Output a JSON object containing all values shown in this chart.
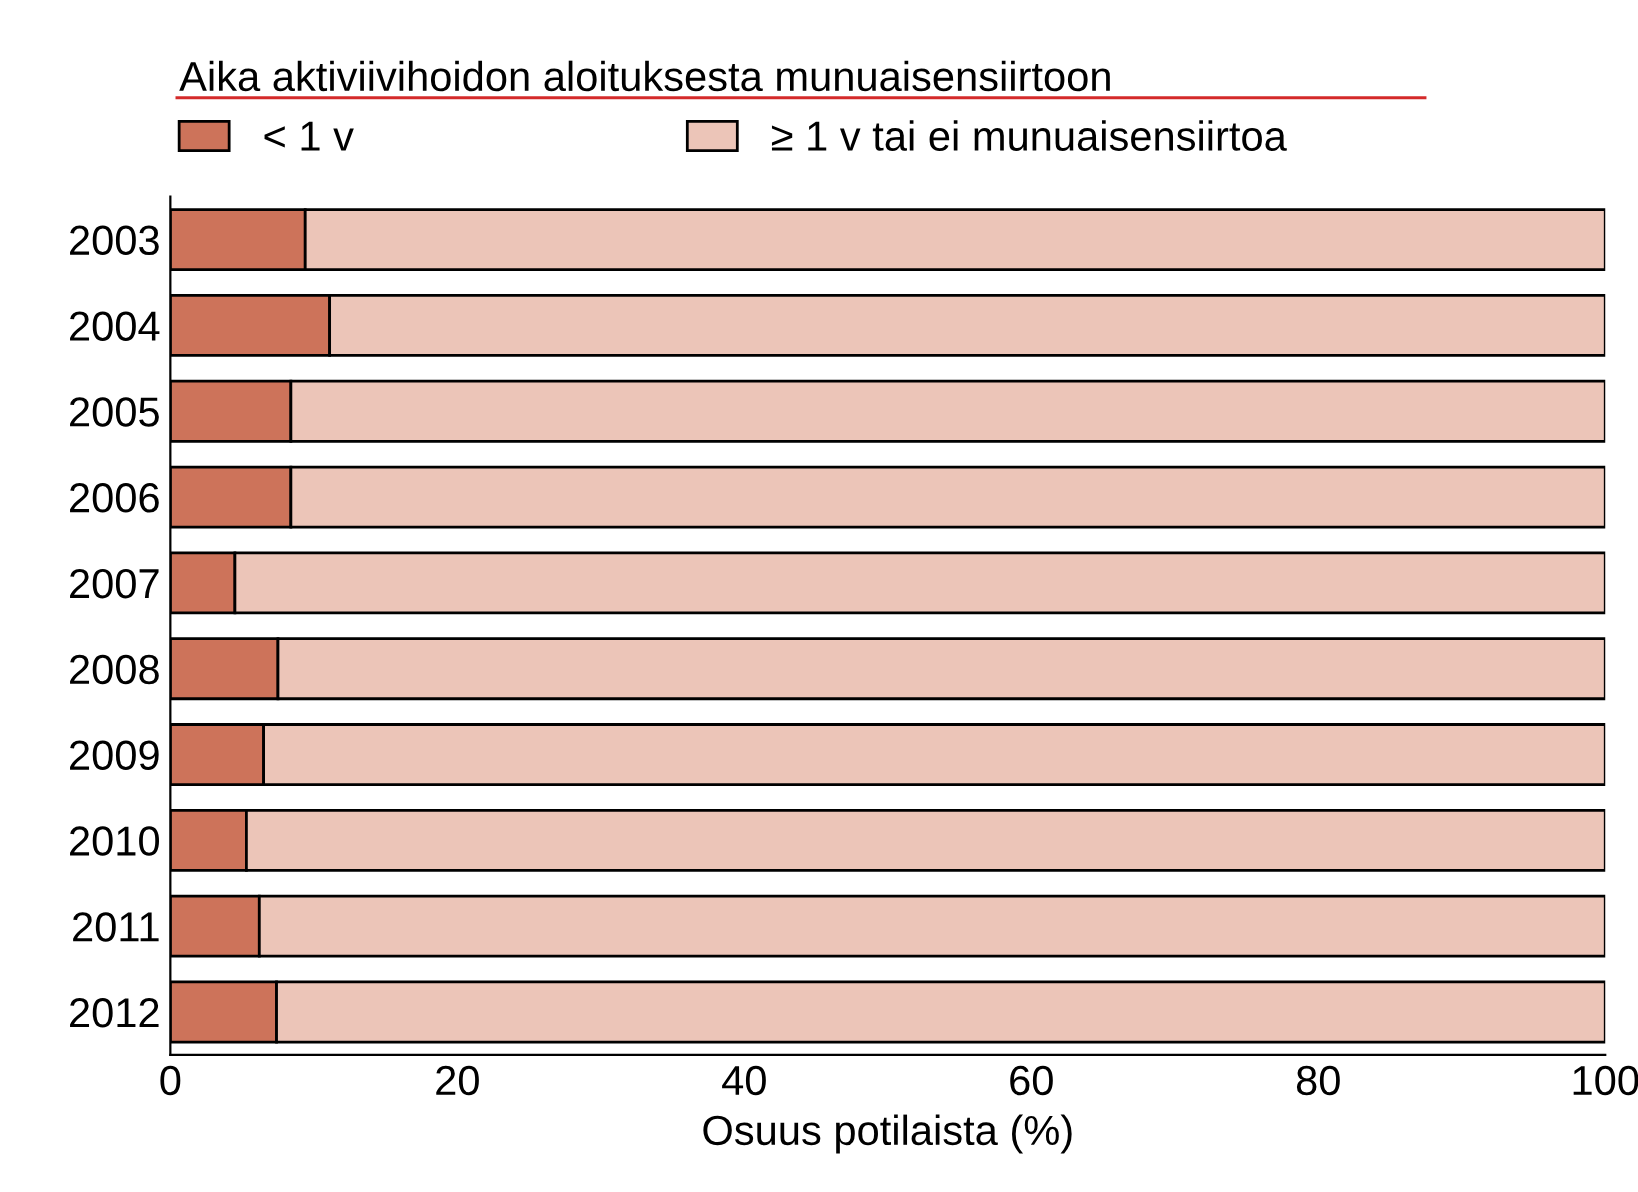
{
  "chart_data": {
    "type": "bar",
    "orientation": "horizontal",
    "stacked": true,
    "legend_title": "Aika aktiviivihoidon aloituksesta munuaisensiirtoon",
    "xlabel": "Osuus potilaista (%)",
    "categories": [
      "2003",
      "2004",
      "2005",
      "2006",
      "2007",
      "2008",
      "2009",
      "2010",
      "2011",
      "2012"
    ],
    "series": [
      {
        "name": "< 1 v",
        "color": "#cd735a",
        "values": [
          9.4,
          11.1,
          8.4,
          8.4,
          4.5,
          7.5,
          6.5,
          5.3,
          6.2,
          7.4
        ]
      },
      {
        "name": "≥ 1 v tai ei munuaisensiirtoa",
        "color": "#ecc5b8",
        "values": [
          90.6,
          88.9,
          91.6,
          91.6,
          95.5,
          92.5,
          93.5,
          94.7,
          93.8,
          92.6
        ]
      }
    ],
    "xlim": [
      0,
      100
    ],
    "xticks": [
      0,
      20,
      40,
      60,
      80,
      100
    ],
    "legend": "top",
    "grid": false
  }
}
